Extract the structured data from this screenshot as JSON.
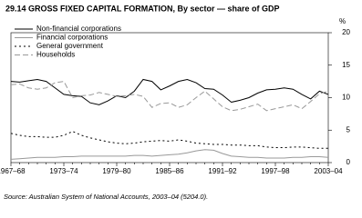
{
  "chart_data": {
    "type": "line",
    "title": "29.14 GROSS FIXED CAPITAL FORMATION, By sector — share of GDP",
    "y_label": "%",
    "source": "Source: Australian System of National Accounts, 2003–04 (5204.0).",
    "categories": [
      "1967–68",
      null,
      null,
      null,
      null,
      null,
      "1973–74",
      null,
      null,
      null,
      null,
      null,
      "1979–80",
      null,
      null,
      null,
      null,
      null,
      "1985–86",
      null,
      null,
      null,
      null,
      null,
      "1991–92",
      null,
      null,
      null,
      null,
      null,
      "1997–98",
      null,
      null,
      null,
      null,
      null,
      "2003–04"
    ],
    "ylim": [
      0,
      20
    ],
    "yticks": [
      0,
      5,
      10,
      15,
      20
    ],
    "series": [
      {
        "name": "Non-financial corporations",
        "color": "#000000",
        "dash": "none",
        "values": [
          12.5,
          12.4,
          12.6,
          12.8,
          12.5,
          11.5,
          10.5,
          10.3,
          10.2,
          9.2,
          8.9,
          9.5,
          10.3,
          10.0,
          11.0,
          12.8,
          12.5,
          11.2,
          11.8,
          12.5,
          12.8,
          12.3,
          11.4,
          11.3,
          10.4,
          9.3,
          9.6,
          10.0,
          10.7,
          11.2,
          11.3,
          11.5,
          11.3,
          10.5,
          9.8,
          11.0,
          10.5
        ]
      },
      {
        "name": "Financial corporations",
        "color": "#999999",
        "dash": "none",
        "values": [
          0.5,
          0.6,
          0.7,
          0.8,
          0.8,
          0.8,
          0.9,
          0.9,
          1.0,
          1.0,
          1.0,
          1.0,
          1.0,
          1.0,
          1.1,
          1.1,
          1.0,
          1.1,
          1.2,
          1.3,
          1.5,
          1.8,
          2.0,
          1.9,
          1.4,
          1.0,
          0.9,
          0.8,
          0.8,
          0.7,
          0.7,
          0.7,
          0.8,
          0.8,
          0.9,
          0.9,
          0.8
        ]
      },
      {
        "name": "General government",
        "color": "#000000",
        "dash": "2,3",
        "values": [
          4.5,
          4.2,
          4.0,
          4.0,
          3.9,
          3.9,
          4.2,
          4.8,
          4.2,
          3.8,
          3.5,
          3.2,
          3.0,
          2.9,
          3.0,
          3.2,
          3.3,
          3.4,
          3.3,
          3.5,
          3.3,
          3.0,
          2.9,
          2.8,
          2.8,
          2.7,
          2.7,
          2.6,
          2.6,
          2.4,
          2.3,
          2.3,
          2.4,
          2.4,
          2.3,
          2.2,
          2.2
        ]
      },
      {
        "name": "Households",
        "color": "#999999",
        "dash": "6,3",
        "values": [
          12.0,
          12.1,
          11.5,
          11.3,
          11.5,
          12.3,
          12.5,
          10.0,
          10.3,
          10.4,
          10.8,
          10.5,
          10.2,
          10.3,
          10.5,
          10.2,
          8.5,
          9.1,
          9.2,
          8.5,
          8.9,
          10.0,
          11.0,
          9.8,
          8.6,
          8.0,
          8.2,
          8.6,
          9.0,
          8.0,
          8.3,
          8.6,
          8.9,
          8.3,
          9.4,
          10.6,
          11.0
        ]
      }
    ]
  }
}
